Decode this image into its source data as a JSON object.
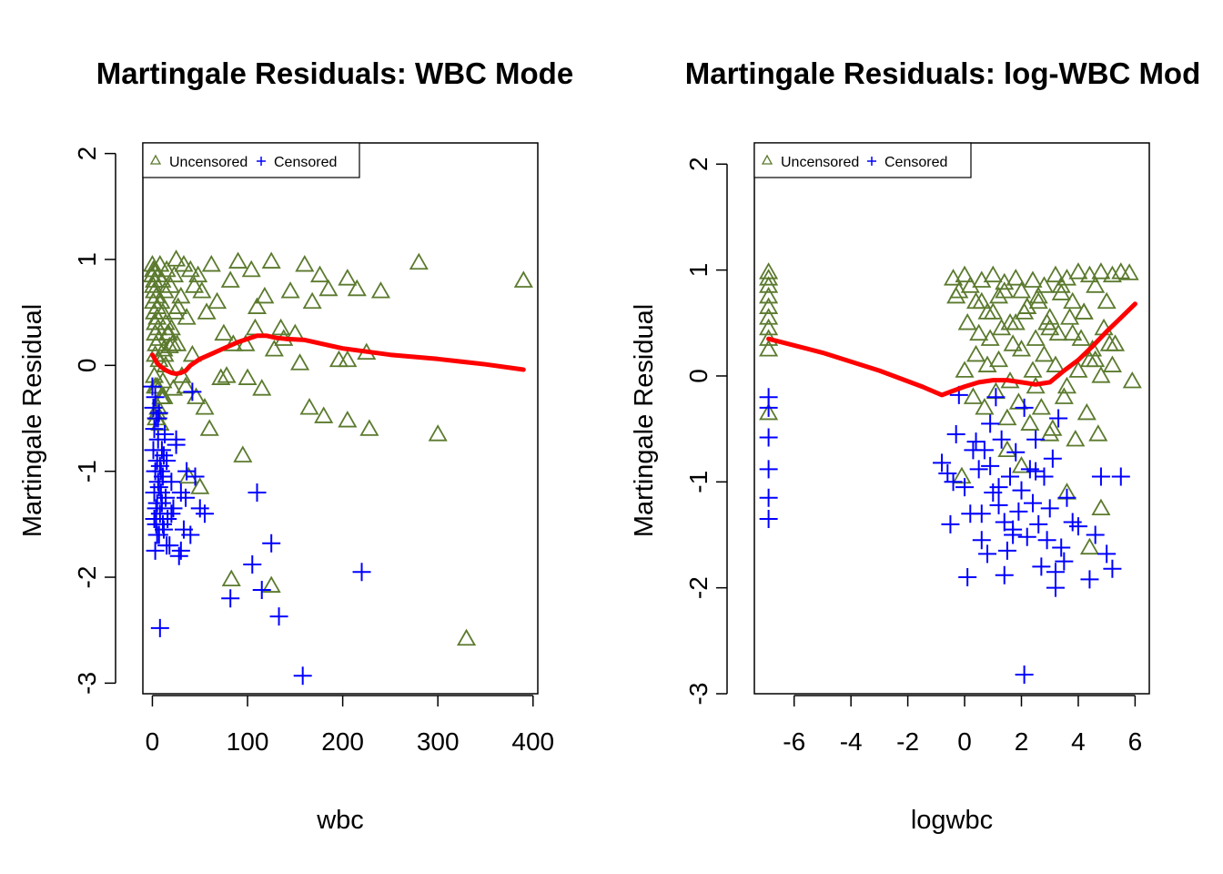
{
  "colors": {
    "uncensored": "#5b7a2e",
    "censored": "#0000ff",
    "smooth": "#ff0000"
  },
  "icons": {
    "uncensored": "triangle-icon",
    "censored": "plus-icon"
  },
  "chart_data": [
    {
      "type": "scatter",
      "title": "Martingale Residuals: WBC Mode",
      "xlabel": "wbc",
      "ylabel": "Martingale Residual",
      "xlim": [
        -10,
        405
      ],
      "ylim": [
        -3.1,
        2.1
      ],
      "xticks": [
        "0",
        "100",
        "200",
        "300",
        "400"
      ],
      "xtick_values": [
        0,
        100,
        200,
        300,
        400
      ],
      "yticks": [
        "-3",
        "-2",
        "-1",
        "0",
        "1",
        "2"
      ],
      "ytick_values": [
        -3,
        -2,
        -1,
        0,
        1,
        2
      ],
      "legend": {
        "position": "top-left",
        "entries": [
          "Uncensored",
          "Censored"
        ]
      },
      "series": [
        {
          "name": "Uncensored",
          "marker": "triangle",
          "x": [
            0,
            0,
            1,
            1,
            1,
            2,
            2,
            2,
            3,
            3,
            3,
            4,
            4,
            5,
            5,
            6,
            6,
            7,
            8,
            9,
            10,
            11,
            12,
            13,
            14,
            15,
            17,
            19,
            21,
            23,
            25,
            27,
            30,
            33,
            36,
            40,
            44,
            48,
            52,
            57,
            62,
            68,
            75,
            82,
            90,
            98,
            104,
            110,
            118,
            125,
            135,
            145,
            150,
            160,
            168,
            176,
            185,
            196,
            205,
            215,
            225,
            240,
            280,
            330,
            390,
            3,
            5,
            7,
            9,
            11,
            13,
            18,
            22,
            26,
            31,
            35,
            42,
            46,
            55,
            60,
            72,
            78,
            85,
            95,
            100,
            108,
            115,
            128,
            138,
            155,
            165,
            180,
            205,
            205,
            228,
            300,
            83,
            125,
            4,
            6,
            8,
            10,
            2,
            3,
            5,
            12,
            16,
            20,
            14,
            24,
            38,
            50
          ],
          "y": [
            0.95,
            0.85,
            0.75,
            0.9,
            0.6,
            0.8,
            0.5,
            0.7,
            0.4,
            0.3,
            0.9,
            0.2,
            0.65,
            0.55,
            0.45,
            0.85,
            0.35,
            0.25,
            0.95,
            0.6,
            0.8,
            0.5,
            0.15,
            0.7,
            0.4,
            0.9,
            0.3,
            0.75,
            0.2,
            0.85,
            1.0,
            0.55,
            0.65,
            0.95,
            0.45,
            0.9,
            0.75,
            0.85,
            0.7,
            0.5,
            0.95,
            0.6,
            0.3,
            0.8,
            0.98,
            0.2,
            0.9,
            0.55,
            0.65,
            0.98,
            0.35,
            0.7,
            0.3,
            0.95,
            0.6,
            0.85,
            0.72,
            0.05,
            0.82,
            0.72,
            0.12,
            0.7,
            0.97,
            -2.58,
            0.8,
            0.1,
            -0.2,
            0.05,
            -0.3,
            -0.15,
            0.1,
            0.18,
            -0.22,
            0.2,
            -0.1,
            -0.2,
            0.1,
            -0.3,
            -0.4,
            -0.6,
            -0.12,
            -0.1,
            0.2,
            -0.85,
            -0.12,
            0.35,
            -0.22,
            0.15,
            0.25,
            0.02,
            -0.4,
            -0.48,
            0.05,
            -0.52,
            -0.6,
            -0.65,
            -2.02,
            -2.08,
            -0.5,
            -0.4,
            -0.55,
            -0.3,
            -0.1,
            -0.2,
            -0.45,
            -0.3,
            0.3,
            0.35,
            0.0,
            0.5,
            -1.05,
            -1.15
          ],
          "color": "#5b7a2e"
        },
        {
          "name": "Censored",
          "marker": "plus",
          "x": [
            0,
            1,
            1,
            2,
            2,
            3,
            3,
            4,
            4,
            5,
            5,
            6,
            6,
            7,
            7,
            8,
            8,
            9,
            10,
            11,
            12,
            13,
            14,
            15,
            16,
            18,
            20,
            22,
            25,
            28,
            30,
            33,
            36,
            40,
            45,
            50,
            55,
            8,
            110,
            125,
            133,
            158,
            115,
            105,
            220,
            82,
            30,
            25,
            3,
            5,
            7,
            10,
            12,
            15,
            20,
            35,
            42,
            6,
            9,
            4,
            11,
            2
          ],
          "y": [
            -0.2,
            -0.4,
            -0.8,
            -0.6,
            -1.2,
            -0.3,
            -1.0,
            -1.5,
            -0.5,
            -0.9,
            -1.3,
            -0.7,
            -1.1,
            -1.6,
            -0.45,
            -0.95,
            -1.4,
            -1.2,
            -0.8,
            -1.05,
            -1.55,
            -0.65,
            -1.25,
            -0.9,
            -1.45,
            -1.7,
            -1.1,
            -1.35,
            -0.75,
            -1.8,
            -1.2,
            -1.55,
            -1.0,
            -1.6,
            -1.05,
            -1.35,
            -1.4,
            -2.48,
            -1.2,
            -1.68,
            -2.37,
            -2.93,
            -2.12,
            -1.88,
            -1.95,
            -2.2,
            -1.75,
            -0.7,
            -1.75,
            -1.6,
            -1.15,
            -1.3,
            -0.85,
            -1.7,
            -1.4,
            -1.25,
            -0.25,
            -0.5,
            -1.0,
            -1.35,
            -1.5,
            -1.45
          ],
          "color": "#0000ff"
        },
        {
          "name": "smooth",
          "type": "line",
          "x": [
            0,
            5,
            10,
            15,
            20,
            25,
            30,
            35,
            40,
            50,
            60,
            70,
            80,
            90,
            100,
            110,
            120,
            130,
            140,
            160,
            180,
            200,
            250,
            300,
            350,
            390
          ],
          "y": [
            0.1,
            0.02,
            -0.02,
            -0.05,
            -0.07,
            -0.08,
            -0.07,
            -0.05,
            0.0,
            0.06,
            0.1,
            0.14,
            0.18,
            0.22,
            0.25,
            0.28,
            0.28,
            0.26,
            0.25,
            0.24,
            0.2,
            0.16,
            0.1,
            0.06,
            0.01,
            -0.04
          ],
          "color": "#ff0000"
        }
      ]
    },
    {
      "type": "scatter",
      "title": "Martingale Residuals: log-WBC Mod",
      "xlabel": "logwbc",
      "ylabel": "Martingale Residual",
      "xlim": [
        -7.4,
        6.5
      ],
      "ylim": [
        -3.0,
        2.2
      ],
      "xticks": [
        "-6",
        "-4",
        "-2",
        "0",
        "2",
        "4",
        "6"
      ],
      "xtick_values": [
        -6,
        -4,
        -2,
        0,
        2,
        4,
        6
      ],
      "yticks": [
        "-3",
        "-2",
        "-1",
        "0",
        "1",
        "2"
      ],
      "ytick_values": [
        -3,
        -2,
        -1,
        0,
        1,
        2
      ],
      "legend": {
        "position": "top-left",
        "entries": [
          "Uncensored",
          "Censored"
        ]
      },
      "series": [
        {
          "name": "Uncensored",
          "marker": "triangle",
          "x": [
            -6.9,
            -6.9,
            -6.9,
            -6.9,
            -6.9,
            -6.9,
            -6.9,
            -6.9,
            -6.9,
            -6.9,
            -0.4,
            -0.2,
            0.0,
            0.2,
            0.4,
            0.6,
            0.8,
            1.0,
            1.2,
            1.4,
            1.6,
            1.8,
            2.0,
            2.2,
            2.4,
            2.6,
            2.8,
            3.0,
            3.2,
            3.4,
            3.6,
            3.8,
            4.0,
            4.2,
            4.4,
            4.6,
            4.8,
            5.0,
            5.2,
            5.5,
            5.8,
            -0.3,
            0.1,
            0.5,
            0.9,
            1.3,
            1.7,
            2.1,
            2.5,
            2.9,
            3.3,
            3.7,
            4.1,
            4.5,
            4.9,
            5.3,
            0.0,
            0.4,
            0.8,
            1.2,
            1.6,
            2.0,
            2.4,
            2.8,
            3.2,
            3.6,
            4.0,
            4.4,
            4.8,
            5.2,
            5.9,
            0.3,
            0.7,
            1.1,
            1.5,
            1.9,
            2.3,
            2.7,
            3.1,
            3.5,
            3.9,
            4.3,
            4.7,
            5.1,
            0.6,
            1.0,
            1.4,
            1.8,
            2.2,
            2.6,
            3.0,
            3.4,
            3.8,
            4.2,
            4.6,
            -0.1,
            2.5,
            3.6,
            4.4,
            4.8,
            1.5,
            2.0,
            3.0
          ],
          "y": [
            0.98,
            0.92,
            0.85,
            0.75,
            0.65,
            0.55,
            0.45,
            0.35,
            0.25,
            -0.35,
            0.92,
            0.8,
            0.95,
            0.85,
            0.7,
            0.9,
            0.6,
            0.95,
            0.75,
            0.88,
            0.5,
            0.92,
            0.8,
            0.65,
            0.9,
            0.7,
            0.85,
            0.55,
            0.95,
            0.78,
            0.92,
            0.7,
            0.98,
            0.6,
            0.95,
            0.85,
            0.98,
            0.7,
            0.95,
            0.98,
            0.97,
            0.75,
            0.5,
            0.4,
            0.35,
            0.45,
            0.3,
            0.6,
            0.35,
            0.5,
            0.4,
            0.55,
            0.35,
            0.25,
            0.45,
            0.3,
            0.05,
            0.2,
            0.1,
            0.15,
            -0.05,
            0.25,
            0.05,
            0.2,
            0.1,
            -0.1,
            0.05,
            0.15,
            0.0,
            0.1,
            -0.05,
            -0.2,
            -0.3,
            -0.15,
            -0.4,
            -0.25,
            -0.45,
            -0.3,
            -0.5,
            -0.2,
            -0.6,
            -0.35,
            -0.55,
            0.3,
            0.7,
            0.6,
            0.8,
            0.5,
            0.65,
            0.75,
            0.45,
            0.85,
            0.4,
            0.6,
            0.15,
            -0.95,
            -0.1,
            -1.1,
            -1.62,
            -1.25,
            -0.7,
            -0.85,
            -0.55
          ],
          "color": "#5b7a2e"
        },
        {
          "name": "Censored",
          "marker": "plus",
          "x": [
            -6.9,
            -6.9,
            -6.9,
            -6.9,
            -6.9,
            -6.9,
            -0.8,
            -0.6,
            -0.5,
            -0.3,
            -0.2,
            0.0,
            0.2,
            0.4,
            0.5,
            0.6,
            0.7,
            0.8,
            0.9,
            1.0,
            1.1,
            1.2,
            1.3,
            1.4,
            1.5,
            1.6,
            1.7,
            1.8,
            1.9,
            2.0,
            2.1,
            2.2,
            2.3,
            2.4,
            2.5,
            2.6,
            2.7,
            2.8,
            2.9,
            3.0,
            3.1,
            3.2,
            3.3,
            3.4,
            3.6,
            3.8,
            4.0,
            4.4,
            4.6,
            4.8,
            5.0,
            5.5,
            5.2,
            0.1,
            1.4,
            2.1,
            3.2,
            0.3,
            0.9,
            1.7,
            2.5,
            3.5,
            -0.4,
            0.6,
            1.2
          ],
          "y": [
            -0.2,
            -0.3,
            -0.58,
            -0.88,
            -1.15,
            -1.35,
            -0.82,
            -0.92,
            -1.4,
            -0.55,
            -0.18,
            -1.05,
            -1.3,
            -0.62,
            -0.88,
            -1.55,
            -0.7,
            -1.68,
            -0.85,
            -1.1,
            -0.2,
            -1.22,
            -0.6,
            -1.38,
            -1.65,
            -0.95,
            -1.45,
            -0.72,
            -1.28,
            -1.08,
            -0.3,
            -1.52,
            -0.88,
            -1.2,
            -0.6,
            -1.4,
            -1.8,
            -0.95,
            -1.55,
            -1.25,
            -0.78,
            -1.85,
            -0.4,
            -1.62,
            -1.15,
            -1.38,
            -1.42,
            -1.92,
            -1.5,
            -0.95,
            -1.68,
            -0.95,
            -1.82,
            -1.9,
            -1.88,
            -2.82,
            -2.0,
            -0.7,
            -0.45,
            -1.5,
            -0.9,
            -1.75,
            -1.0,
            -1.3,
            -1.05
          ],
          "color": "#0000ff"
        },
        {
          "name": "smooth",
          "type": "line",
          "x": [
            -6.9,
            -5.0,
            -3.0,
            -1.5,
            -0.8,
            -0.5,
            0.0,
            0.5,
            1.0,
            1.5,
            2.0,
            2.5,
            3.0,
            3.5,
            4.0,
            4.5,
            5.0,
            5.5,
            6.0
          ],
          "y": [
            0.35,
            0.22,
            0.05,
            -0.1,
            -0.18,
            -0.15,
            -0.1,
            -0.06,
            -0.04,
            -0.04,
            -0.06,
            -0.08,
            -0.06,
            0.05,
            0.15,
            0.28,
            0.42,
            0.55,
            0.68
          ],
          "color": "#ff0000"
        }
      ]
    }
  ]
}
